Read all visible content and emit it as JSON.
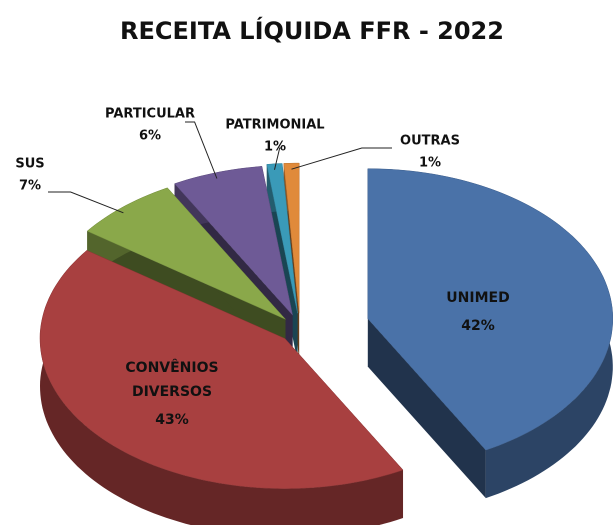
{
  "chart_data": {
    "type": "pie3d",
    "title": "RECEITA LÍQUIDA FFR - 2022",
    "categories": [
      "UNIMED",
      "CONVÊNIOS DIVERSOS",
      "SUS",
      "PARTICULAR",
      "PATRIMONIAL",
      "OUTRAS"
    ],
    "values": [
      42,
      43,
      7,
      6,
      1,
      1
    ],
    "value_labels": [
      "42%",
      "43%",
      "7%",
      "6%",
      "1%",
      "1%"
    ],
    "colors": [
      "#4a72a8",
      "#a84040",
      "#8aa84a",
      "#6e5a96",
      "#3a9ab8",
      "#e08a3a"
    ]
  }
}
